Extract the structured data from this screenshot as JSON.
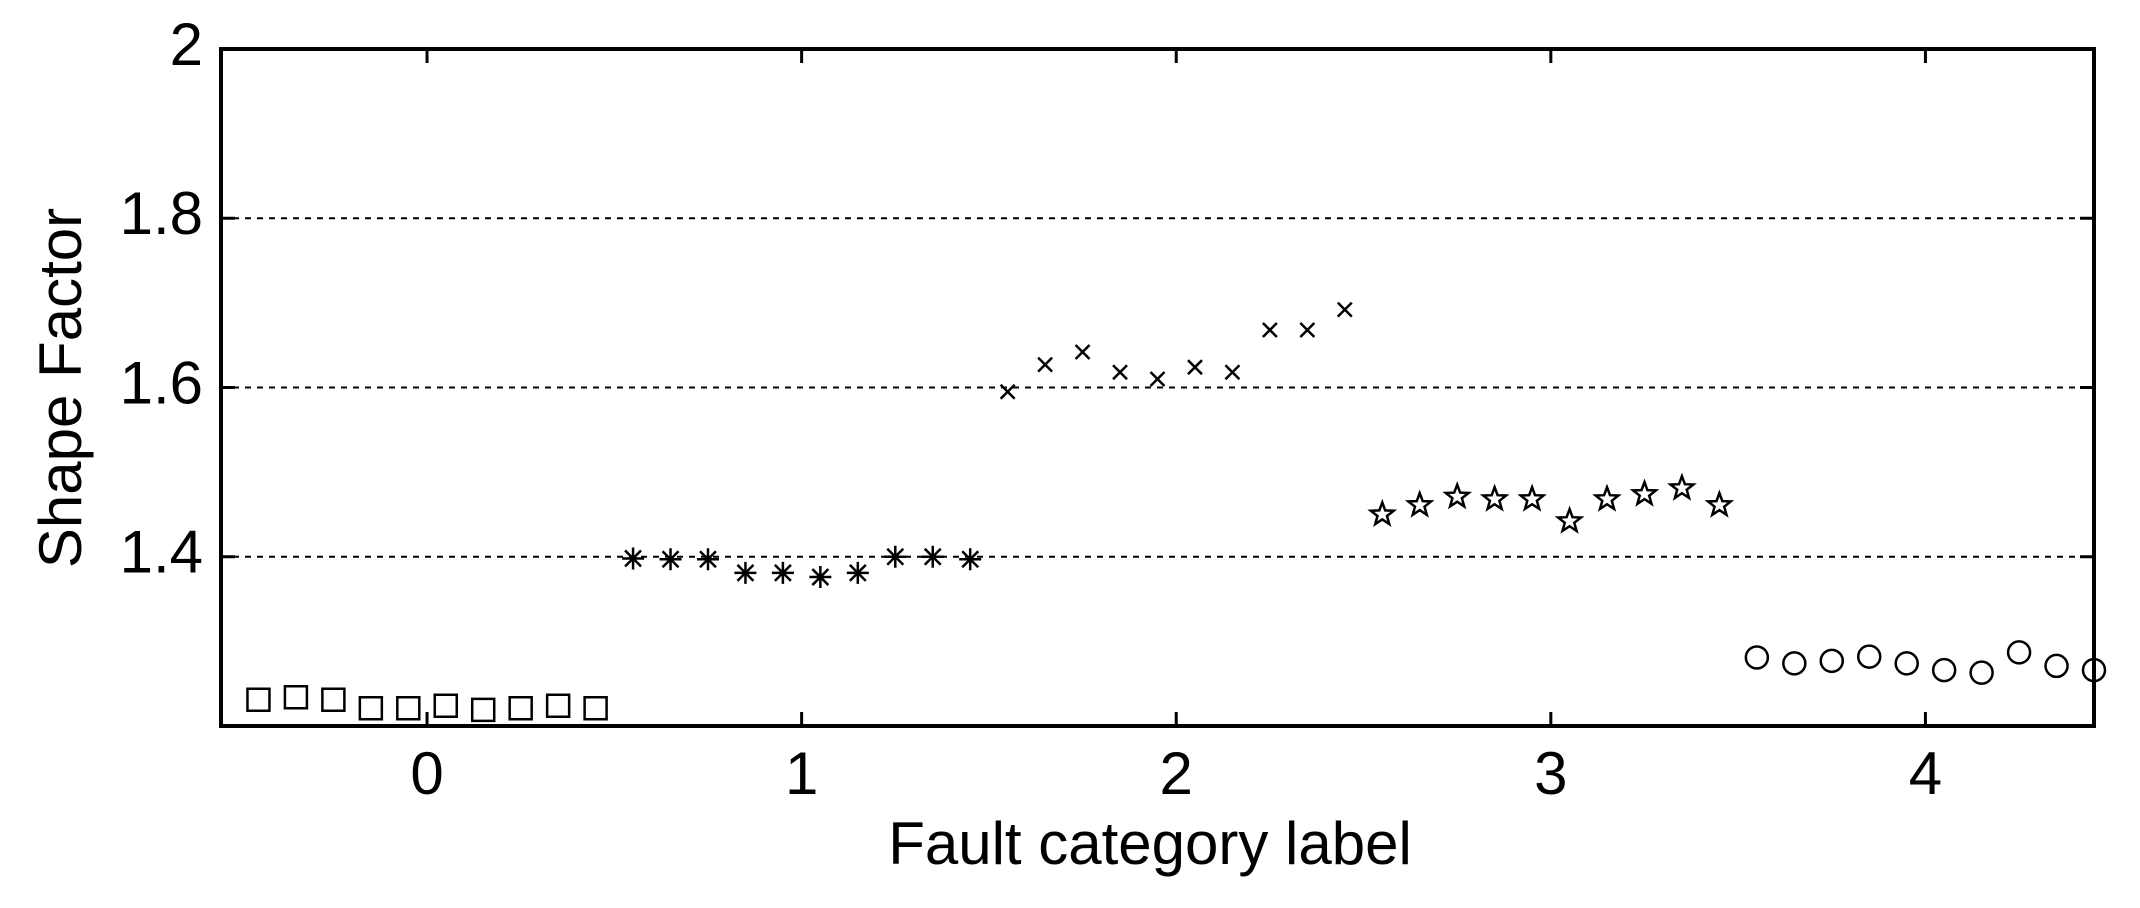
{
  "chart_data": {
    "type": "scatter",
    "xlabel": "Fault category label",
    "ylabel": "Shape Factor",
    "xlim": [
      -0.55,
      4.45
    ],
    "ylim": [
      1.2,
      2
    ],
    "xticks": [
      0,
      1,
      2,
      3,
      4
    ],
    "yticks": [
      1.4,
      1.6,
      1.8,
      2
    ],
    "grid": true,
    "series": [
      {
        "marker": "square",
        "color": "#000000",
        "x": [
          -0.45,
          -0.35,
          -0.25,
          -0.15,
          -0.05,
          0.05,
          0.15,
          0.25,
          0.35,
          0.45
        ],
        "values": [
          1.231,
          1.234,
          1.231,
          1.221,
          1.221,
          1.224,
          1.219,
          1.221,
          1.224,
          1.221
        ]
      },
      {
        "marker": "asterisk",
        "color": "#000000",
        "x": [
          0.55,
          0.65,
          0.75,
          0.85,
          0.95,
          1.05,
          1.15,
          1.25,
          1.35,
          1.45
        ],
        "values": [
          1.398,
          1.397,
          1.397,
          1.381,
          1.381,
          1.376,
          1.381,
          1.4,
          1.4,
          1.397
        ]
      },
      {
        "marker": "cross",
        "color": "#000000",
        "x": [
          1.55,
          1.65,
          1.75,
          1.85,
          1.95,
          2.05,
          2.15,
          2.25,
          2.35,
          2.45
        ],
        "values": [
          1.595,
          1.627,
          1.642,
          1.618,
          1.61,
          1.624,
          1.618,
          1.668,
          1.668,
          1.692
        ]
      },
      {
        "marker": "star",
        "color": "#000000",
        "x": [
          2.55,
          2.65,
          2.75,
          2.85,
          2.95,
          3.05,
          3.15,
          3.25,
          3.35,
          3.45
        ],
        "values": [
          1.45,
          1.461,
          1.471,
          1.468,
          1.468,
          1.442,
          1.468,
          1.474,
          1.481,
          1.461
        ]
      },
      {
        "marker": "circle",
        "color": "#000000",
        "x": [
          3.55,
          3.65,
          3.75,
          3.85,
          3.95,
          4.05,
          4.15,
          4.25,
          4.35,
          4.45
        ],
        "values": [
          1.281,
          1.274,
          1.277,
          1.282,
          1.274,
          1.266,
          1.263,
          1.287,
          1.271,
          1.266
        ]
      }
    ]
  }
}
